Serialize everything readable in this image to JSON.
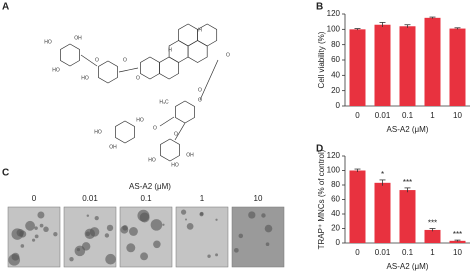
{
  "panels": {
    "a": "A",
    "b": "B",
    "c": "C",
    "d": "D"
  },
  "structure_labels": [
    "HO",
    "OH",
    "HO",
    "HO",
    "O",
    "O",
    "O",
    "O",
    "H",
    "H",
    "O",
    "O",
    "H₃C",
    "HO",
    "OH",
    "HO",
    "O",
    "O",
    "HO",
    "HO",
    "OH"
  ],
  "micrographs": {
    "title": "AS-A2 (μM)",
    "labels": [
      "0",
      "0.01",
      "0.1",
      "1",
      "10"
    ]
  },
  "chart_data": [
    {
      "type": "bar",
      "ylabel": "Cell viability (%)",
      "xlabel": "AS-A2 (μM)",
      "categories": [
        "0",
        "0.01",
        "0.1",
        "1",
        "10"
      ],
      "values": [
        100,
        106,
        104,
        115,
        101
      ],
      "errors": [
        1,
        3,
        2,
        1,
        1
      ],
      "color": "#e8323f",
      "ylim": [
        0,
        120
      ],
      "yticks": [
        0,
        20,
        40,
        60,
        80,
        100,
        120
      ]
    },
    {
      "type": "bar",
      "ylabel": "TRAP⁺ MNCs (% of control)",
      "xlabel": "AS-A2 (μM)",
      "categories": [
        "0",
        "0.01",
        "0.1",
        "1",
        "10"
      ],
      "values": [
        100,
        83,
        73,
        18,
        3
      ],
      "errors": [
        2,
        4,
        3,
        2,
        1
      ],
      "significance": [
        null,
        "*",
        "***",
        "***",
        "***"
      ],
      "color": "#e8323f",
      "ylim": [
        0,
        120
      ],
      "yticks": [
        0,
        20,
        40,
        60,
        80,
        100,
        120
      ]
    }
  ]
}
